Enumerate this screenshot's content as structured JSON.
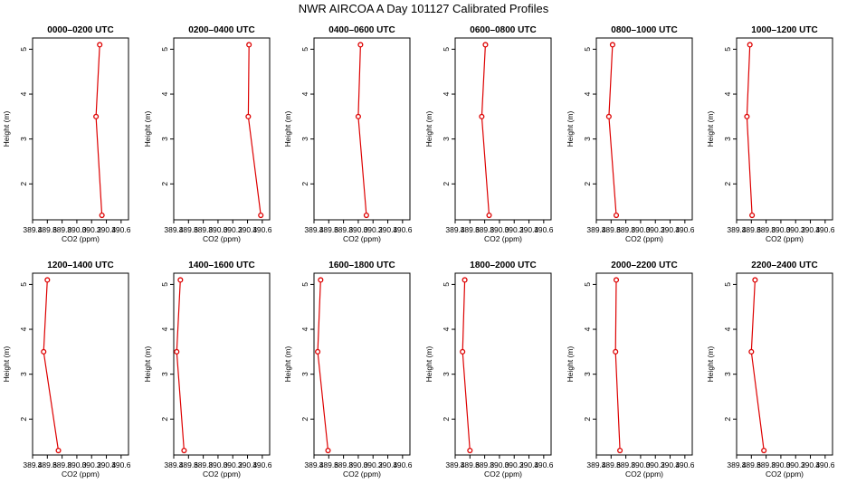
{
  "title": "NWR AIRCOA A  Day 101127  Calibrated Profiles",
  "colors": {
    "line": "#dd0000",
    "axis": "#000000",
    "background": "#ffffff"
  },
  "chart_data": [
    {
      "type": "line",
      "title": "0000–0200 UTC",
      "xlabel": "CO2 (ppm)",
      "ylabel": "Height (m)",
      "xlim": [
        389.4,
        390.7
      ],
      "ylim": [
        1.2,
        5.25
      ],
      "xticks": [
        "389.4",
        "389.6",
        "389.8",
        "390.0",
        "390.2",
        "390.4",
        "390.6"
      ],
      "yticks": [
        "2",
        "3",
        "4",
        "5"
      ],
      "x": [
        390.31,
        390.26,
        390.34
      ],
      "y": [
        5.1,
        3.5,
        1.3
      ]
    },
    {
      "type": "line",
      "title": "0200–0400 UTC",
      "xlabel": "CO2 (ppm)",
      "ylabel": "Height (m)",
      "xlim": [
        389.4,
        390.7
      ],
      "ylim": [
        1.2,
        5.25
      ],
      "xticks": [
        "389.4",
        "389.6",
        "389.8",
        "390.0",
        "390.2",
        "390.4",
        "390.6"
      ],
      "yticks": [
        "2",
        "3",
        "4",
        "5"
      ],
      "x": [
        390.42,
        390.41,
        390.58
      ],
      "y": [
        5.1,
        3.5,
        1.3
      ]
    },
    {
      "type": "line",
      "title": "0400–0600 UTC",
      "xlabel": "CO2 (ppm)",
      "ylabel": "Height (m)",
      "xlim": [
        389.4,
        390.7
      ],
      "ylim": [
        1.2,
        5.25
      ],
      "xticks": [
        "389.4",
        "389.6",
        "389.8",
        "390.0",
        "390.2",
        "390.4",
        "390.6"
      ],
      "yticks": [
        "2",
        "3",
        "4",
        "5"
      ],
      "x": [
        390.03,
        390.0,
        390.11
      ],
      "y": [
        5.1,
        3.5,
        1.3
      ]
    },
    {
      "type": "line",
      "title": "0600–0800 UTC",
      "xlabel": "CO2 (ppm)",
      "ylabel": "Height (m)",
      "xlim": [
        389.4,
        390.7
      ],
      "ylim": [
        1.2,
        5.25
      ],
      "xticks": [
        "389.4",
        "389.6",
        "389.8",
        "390.0",
        "390.2",
        "390.4",
        "390.6"
      ],
      "yticks": [
        "2",
        "3",
        "4",
        "5"
      ],
      "x": [
        389.81,
        389.76,
        389.86
      ],
      "y": [
        5.1,
        3.5,
        1.3
      ]
    },
    {
      "type": "line",
      "title": "0800–1000 UTC",
      "xlabel": "CO2 (ppm)",
      "ylabel": "Height (m)",
      "xlim": [
        389.4,
        390.7
      ],
      "ylim": [
        1.2,
        5.25
      ],
      "xticks": [
        "389.4",
        "389.6",
        "389.8",
        "390.0",
        "390.2",
        "390.4",
        "390.6"
      ],
      "yticks": [
        "2",
        "3",
        "4",
        "5"
      ],
      "x": [
        389.62,
        389.57,
        389.67
      ],
      "y": [
        5.1,
        3.5,
        1.3
      ]
    },
    {
      "type": "line",
      "title": "1000–1200 UTC",
      "xlabel": "CO2 (ppm)",
      "ylabel": "Height (m)",
      "xlim": [
        389.4,
        390.7
      ],
      "ylim": [
        1.2,
        5.25
      ],
      "xticks": [
        "389.4",
        "389.6",
        "389.8",
        "390.0",
        "390.2",
        "390.4",
        "390.6"
      ],
      "yticks": [
        "2",
        "3",
        "4",
        "5"
      ],
      "x": [
        389.58,
        389.54,
        389.61
      ],
      "y": [
        5.1,
        3.5,
        1.3
      ]
    },
    {
      "type": "line",
      "title": "1200–1400 UTC",
      "xlabel": "CO2 (ppm)",
      "ylabel": "Height (m)",
      "xlim": [
        389.4,
        390.7
      ],
      "ylim": [
        1.2,
        5.25
      ],
      "xticks": [
        "389.4",
        "389.6",
        "389.8",
        "390.0",
        "390.2",
        "390.4",
        "390.6"
      ],
      "yticks": [
        "2",
        "3",
        "4",
        "5"
      ],
      "x": [
        389.6,
        389.55,
        389.75
      ],
      "y": [
        5.1,
        3.5,
        1.3
      ]
    },
    {
      "type": "line",
      "title": "1400–1600 UTC",
      "xlabel": "CO2 (ppm)",
      "ylabel": "Height (m)",
      "xlim": [
        389.4,
        390.7
      ],
      "ylim": [
        1.2,
        5.25
      ],
      "xticks": [
        "389.4",
        "389.6",
        "389.8",
        "390.0",
        "390.2",
        "390.4",
        "390.6"
      ],
      "yticks": [
        "2",
        "3",
        "4",
        "5"
      ],
      "x": [
        389.49,
        389.44,
        389.54
      ],
      "y": [
        5.1,
        3.5,
        1.3
      ]
    },
    {
      "type": "line",
      "title": "1600–1800 UTC",
      "xlabel": "CO2 (ppm)",
      "ylabel": "Height (m)",
      "xlim": [
        389.4,
        390.7
      ],
      "ylim": [
        1.2,
        5.25
      ],
      "xticks": [
        "389.4",
        "389.6",
        "389.8",
        "390.0",
        "390.2",
        "390.4",
        "390.6"
      ],
      "yticks": [
        "2",
        "3",
        "4",
        "5"
      ],
      "x": [
        389.49,
        389.45,
        389.59
      ],
      "y": [
        5.1,
        3.5,
        1.3
      ]
    },
    {
      "type": "line",
      "title": "1800–2000 UTC",
      "xlabel": "CO2 (ppm)",
      "ylabel": "Height (m)",
      "xlim": [
        389.4,
        390.7
      ],
      "ylim": [
        1.2,
        5.25
      ],
      "xticks": [
        "389.4",
        "389.6",
        "389.8",
        "390.0",
        "390.2",
        "390.4",
        "390.6"
      ],
      "yticks": [
        "2",
        "3",
        "4",
        "5"
      ],
      "x": [
        389.53,
        389.5,
        389.6
      ],
      "y": [
        5.1,
        3.5,
        1.3
      ]
    },
    {
      "type": "line",
      "title": "2000–2200 UTC",
      "xlabel": "CO2 (ppm)",
      "ylabel": "Height (m)",
      "xlim": [
        389.4,
        390.7
      ],
      "ylim": [
        1.2,
        5.25
      ],
      "xticks": [
        "389.4",
        "389.6",
        "389.8",
        "390.0",
        "390.2",
        "390.4",
        "390.6"
      ],
      "yticks": [
        "2",
        "3",
        "4",
        "5"
      ],
      "x": [
        389.67,
        389.66,
        389.72
      ],
      "y": [
        5.1,
        3.5,
        1.3
      ]
    },
    {
      "type": "line",
      "title": "2200–2400 UTC",
      "xlabel": "CO2 (ppm)",
      "ylabel": "Height (m)",
      "xlim": [
        389.4,
        390.7
      ],
      "ylim": [
        1.2,
        5.25
      ],
      "xticks": [
        "389.4",
        "389.6",
        "389.8",
        "390.0",
        "390.2",
        "390.4",
        "390.6"
      ],
      "yticks": [
        "2",
        "3",
        "4",
        "5"
      ],
      "x": [
        389.65,
        389.6,
        389.77
      ],
      "y": [
        5.1,
        3.5,
        1.3
      ]
    }
  ]
}
